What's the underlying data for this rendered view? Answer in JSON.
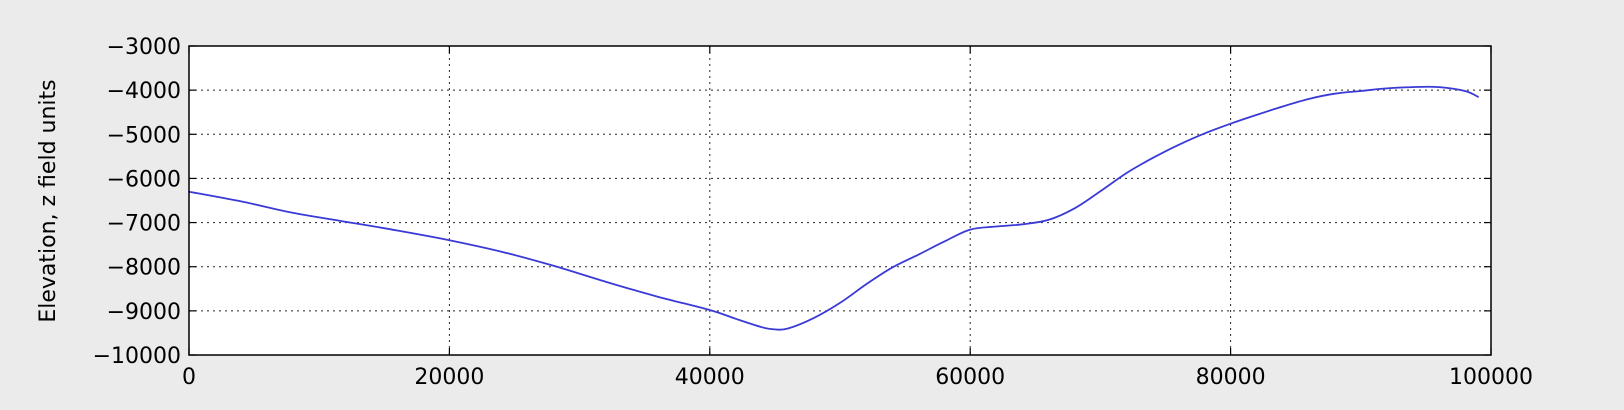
{
  "chart_data": {
    "type": "line",
    "title": "",
    "xlabel": "",
    "ylabel": "Elevation, z field units",
    "xlim": [
      0,
      100000
    ],
    "ylim": [
      -10000,
      -3000
    ],
    "xticks": [
      0,
      20000,
      40000,
      60000,
      80000,
      100000
    ],
    "yticks": [
      -3000,
      -4000,
      -5000,
      -6000,
      -7000,
      -8000,
      -9000,
      -10000
    ],
    "xtick_labels": [
      "0",
      "20000",
      "40000",
      "60000",
      "80000",
      "100000"
    ],
    "ytick_labels": [
      "−3000",
      "−4000",
      "−5000",
      "−6000",
      "−7000",
      "−8000",
      "−9000",
      "−10000"
    ],
    "grid": true,
    "line_color": "#3a3ad6",
    "background": "#ebebeb",
    "plot_background": "#ffffff",
    "series": [
      {
        "x": [
          0,
          4000,
          8000,
          12000,
          16000,
          20000,
          24000,
          28000,
          32000,
          36000,
          40000,
          42000,
          44000,
          45000,
          46000,
          48000,
          50000,
          52000,
          54000,
          56000,
          58000,
          60000,
          62000,
          64000,
          66000,
          68000,
          70000,
          72000,
          74000,
          76000,
          78000,
          80000,
          82000,
          84000,
          86000,
          88000,
          90000,
          92000,
          94000,
          96000,
          98000,
          99000
        ],
        "y": [
          -6300,
          -6520,
          -6780,
          -6980,
          -7180,
          -7400,
          -7660,
          -7980,
          -8340,
          -8680,
          -8980,
          -9180,
          -9370,
          -9420,
          -9400,
          -9160,
          -8820,
          -8400,
          -8020,
          -7730,
          -7430,
          -7160,
          -7090,
          -7040,
          -6940,
          -6680,
          -6290,
          -5880,
          -5540,
          -5240,
          -4980,
          -4760,
          -4560,
          -4370,
          -4200,
          -4080,
          -4020,
          -3960,
          -3930,
          -3930,
          -4020,
          -4150
        ]
      }
    ]
  }
}
